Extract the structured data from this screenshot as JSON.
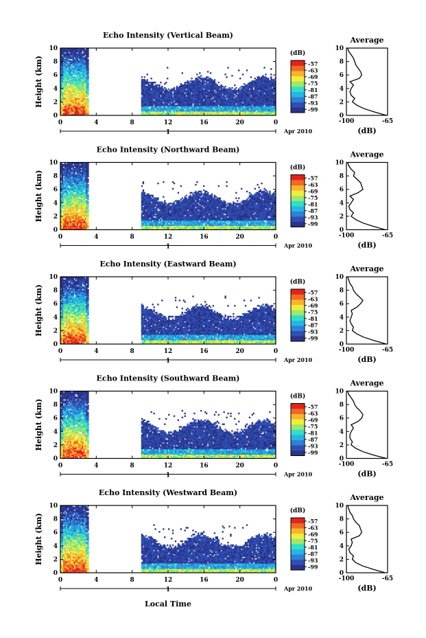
{
  "figure": {
    "xlabel": "Local Time",
    "date_label": "Apr 2010",
    "day_label": "1",
    "colorbar_title": "(dB)",
    "profile_title": "Average",
    "profile_xlabel": "(dB)"
  },
  "colors": {
    "colormap": [
      "#2b3488",
      "#2f4fb3",
      "#2f80d6",
      "#25b6e6",
      "#2fe0c6",
      "#9ee86a",
      "#f1ee3a",
      "#f7b52e",
      "#f26a22",
      "#e2231b"
    ],
    "line": "#000000"
  },
  "chart_data": [
    {
      "type": "heatmap",
      "title": "Echo Intensity (Vertical Beam)",
      "ylabel": "Height (km)",
      "x_ticks": [
        "0",
        "4",
        "8",
        "12",
        "16",
        "20",
        "0"
      ],
      "xlim": [
        0,
        24
      ],
      "y_ticks": [
        "0",
        "2",
        "4",
        "6",
        "8",
        "10"
      ],
      "ylim": [
        0,
        10
      ],
      "colorbar_ticks": [
        "-57",
        "-63",
        "-69",
        "-75",
        "-81",
        "-87",
        "-93",
        "-99"
      ],
      "colorbar_range": [
        -99,
        -57
      ],
      "profile": {
        "title": "Average",
        "x_ticks": [
          "-100",
          "-65"
        ],
        "xlim": [
          -100,
          -65
        ],
        "y_ticks": [
          "0",
          "2",
          "4",
          "6",
          "8",
          "10"
        ],
        "ylim": [
          0,
          10
        ],
        "height_km": [
          0,
          0.5,
          1,
          1.5,
          2,
          2.5,
          3,
          3.5,
          4,
          4.5,
          5,
          5.5,
          6,
          6.5,
          7,
          7.5,
          8,
          8.5,
          9,
          9.5,
          10
        ],
        "value_db": [
          -66,
          -76,
          -85,
          -91,
          -95,
          -93,
          -96,
          -97,
          -96,
          -94,
          -97,
          -89,
          -87,
          -88,
          -90,
          -92,
          -93,
          -94,
          -96,
          -98,
          -99
        ]
      }
    },
    {
      "type": "heatmap",
      "title": "Echo Intensity (Northward Beam)",
      "ylabel": "Height (km)",
      "x_ticks": [
        "0",
        "4",
        "8",
        "12",
        "16",
        "20",
        "0"
      ],
      "xlim": [
        0,
        24
      ],
      "y_ticks": [
        "0",
        "2",
        "4",
        "6",
        "8",
        "10"
      ],
      "ylim": [
        0,
        10
      ],
      "colorbar_ticks": [
        "-57",
        "-63",
        "-69",
        "-75",
        "-81",
        "-87",
        "-93",
        "-99"
      ],
      "colorbar_range": [
        -99,
        -57
      ],
      "profile": {
        "title": "Average",
        "x_ticks": [
          "-100",
          "-65"
        ],
        "xlim": [
          -100,
          -65
        ],
        "y_ticks": [
          "0",
          "2",
          "4",
          "6",
          "8",
          "10"
        ],
        "ylim": [
          0,
          10
        ],
        "height_km": [
          0,
          0.5,
          1,
          1.5,
          2,
          2.5,
          3,
          3.5,
          4,
          4.5,
          5,
          5.5,
          6,
          6.5,
          7,
          7.5,
          8,
          8.5,
          9,
          9.5,
          10
        ],
        "value_db": [
          -67,
          -77,
          -86,
          -92,
          -96,
          -94,
          -97,
          -98,
          -96,
          -94,
          -97,
          -90,
          -86,
          -87,
          -88,
          -91,
          -94,
          -93,
          -96,
          -98,
          -99
        ]
      }
    },
    {
      "type": "heatmap",
      "title": "Echo Intensity (Eastward Beam)",
      "ylabel": "Height (km)",
      "x_ticks": [
        "0",
        "4",
        "8",
        "12",
        "16",
        "20",
        "0"
      ],
      "xlim": [
        0,
        24
      ],
      "y_ticks": [
        "0",
        "2",
        "4",
        "6",
        "8",
        "10"
      ],
      "ylim": [
        0,
        10
      ],
      "colorbar_ticks": [
        "-57",
        "-63",
        "-69",
        "-75",
        "-81",
        "-87",
        "-93",
        "-99"
      ],
      "colorbar_range": [
        -99,
        -57
      ],
      "profile": {
        "title": "Average",
        "x_ticks": [
          "-100",
          "-65"
        ],
        "xlim": [
          -100,
          -65
        ],
        "y_ticks": [
          "0",
          "2",
          "4",
          "6",
          "8",
          "10"
        ],
        "ylim": [
          0,
          10
        ],
        "height_km": [
          0,
          0.5,
          1,
          1.5,
          2,
          2.5,
          3,
          3.5,
          4,
          4.5,
          5,
          5.5,
          6,
          6.5,
          7,
          7.5,
          8,
          8.5,
          9,
          9.5,
          10
        ],
        "value_db": [
          -66,
          -76,
          -85,
          -91,
          -95,
          -94,
          -96,
          -97,
          -96,
          -95,
          -96,
          -91,
          -88,
          -86,
          -89,
          -92,
          -94,
          -95,
          -97,
          -98,
          -99
        ]
      }
    },
    {
      "type": "heatmap",
      "title": "Echo Intensity (Southward Beam)",
      "ylabel": "Height (km)",
      "x_ticks": [
        "0",
        "4",
        "8",
        "12",
        "16",
        "20",
        "0"
      ],
      "xlim": [
        0,
        24
      ],
      "y_ticks": [
        "0",
        "2",
        "4",
        "6",
        "8",
        "10"
      ],
      "ylim": [
        0,
        10
      ],
      "colorbar_ticks": [
        "-57",
        "-63",
        "-69",
        "-75",
        "-81",
        "-87",
        "-93",
        "-99"
      ],
      "colorbar_range": [
        -99,
        -57
      ],
      "profile": {
        "title": "Average",
        "x_ticks": [
          "-100",
          "-65"
        ],
        "xlim": [
          -100,
          -65
        ],
        "y_ticks": [
          "0",
          "2",
          "4",
          "6",
          "8",
          "10"
        ],
        "ylim": [
          0,
          10
        ],
        "height_km": [
          0,
          0.5,
          1,
          1.5,
          2,
          2.5,
          3,
          3.5,
          4,
          4.5,
          5,
          5.5,
          6,
          6.5,
          7,
          7.5,
          8,
          8.5,
          9,
          9.5,
          10
        ],
        "value_db": [
          -66,
          -77,
          -86,
          -92,
          -96,
          -95,
          -97,
          -97,
          -96,
          -94,
          -96,
          -90,
          -87,
          -86,
          -88,
          -91,
          -93,
          -94,
          -96,
          -98,
          -99
        ]
      }
    },
    {
      "type": "heatmap",
      "title": "Echo Intensity (Westward Beam)",
      "ylabel": "Height (km)",
      "x_ticks": [
        "0",
        "4",
        "8",
        "12",
        "16",
        "20",
        "0"
      ],
      "xlim": [
        0,
        24
      ],
      "y_ticks": [
        "0",
        "2",
        "4",
        "6",
        "8",
        "10"
      ],
      "ylim": [
        0,
        10
      ],
      "colorbar_ticks": [
        "-57",
        "-63",
        "-69",
        "-75",
        "-81",
        "-87",
        "-93",
        "-99"
      ],
      "colorbar_range": [
        -99,
        -57
      ],
      "profile": {
        "title": "Average",
        "x_ticks": [
          "-100",
          "-65"
        ],
        "xlim": [
          -100,
          -65
        ],
        "y_ticks": [
          "0",
          "2",
          "4",
          "6",
          "8",
          "10"
        ],
        "ylim": [
          0,
          10
        ],
        "height_km": [
          0,
          0.5,
          1,
          1.5,
          2,
          2.5,
          3,
          3.5,
          4,
          4.5,
          5,
          5.5,
          6,
          6.5,
          7,
          7.5,
          8,
          8.5,
          9,
          9.5,
          10
        ],
        "value_db": [
          -67,
          -77,
          -86,
          -92,
          -95,
          -94,
          -97,
          -98,
          -96,
          -95,
          -96,
          -89,
          -87,
          -88,
          -89,
          -92,
          -94,
          -95,
          -97,
          -98,
          -99
        ]
      }
    }
  ]
}
